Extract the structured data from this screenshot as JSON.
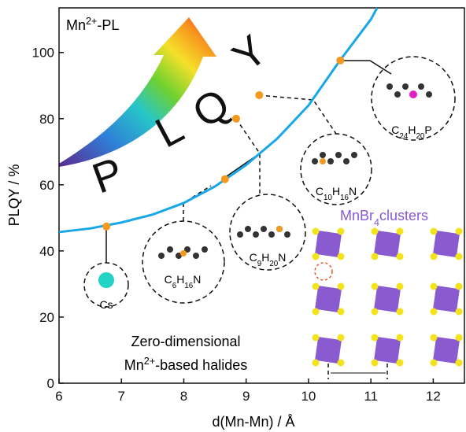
{
  "chart_data": {
    "type": "scatter",
    "title": "Mn2+-PL",
    "xlabel": "d(Mn-Mn) / Å",
    "ylabel": "PLQY / %",
    "xlim": [
      6,
      12.5
    ],
    "ylim": [
      0,
      113.5
    ],
    "xticks": [
      6,
      7,
      8,
      9,
      10,
      11,
      12
    ],
    "yticks": [
      0,
      20,
      40,
      60,
      80,
      100
    ],
    "series": [
      {
        "x": [
          6.76,
          8.66,
          8.84,
          9.21,
          10.51
        ],
        "values": [
          47.4,
          61.7,
          80,
          87.1,
          97.6
        ],
        "color": "#f39a1e"
      }
    ],
    "curve": {
      "x": [
        6,
        6.5,
        7,
        7.5,
        8,
        8.5,
        9,
        9.5,
        10,
        10.5,
        11,
        11.1
      ],
      "values": [
        45.7,
        46.8,
        48.6,
        51,
        54.5,
        59.5,
        66,
        74,
        84,
        97.5,
        110,
        113.5
      ],
      "color": "#1aa7e8"
    },
    "annotations": {
      "letters": [
        "P",
        "L",
        "Q",
        "Y"
      ],
      "text_lines": [
        "Zero-dimensional",
        "Mn2+-based halides"
      ],
      "clusters": "MnBr4clusters",
      "cations": [
        "Cs",
        "C6H16N",
        "C9H20N",
        "C10H16N",
        "C24H20P"
      ]
    }
  }
}
